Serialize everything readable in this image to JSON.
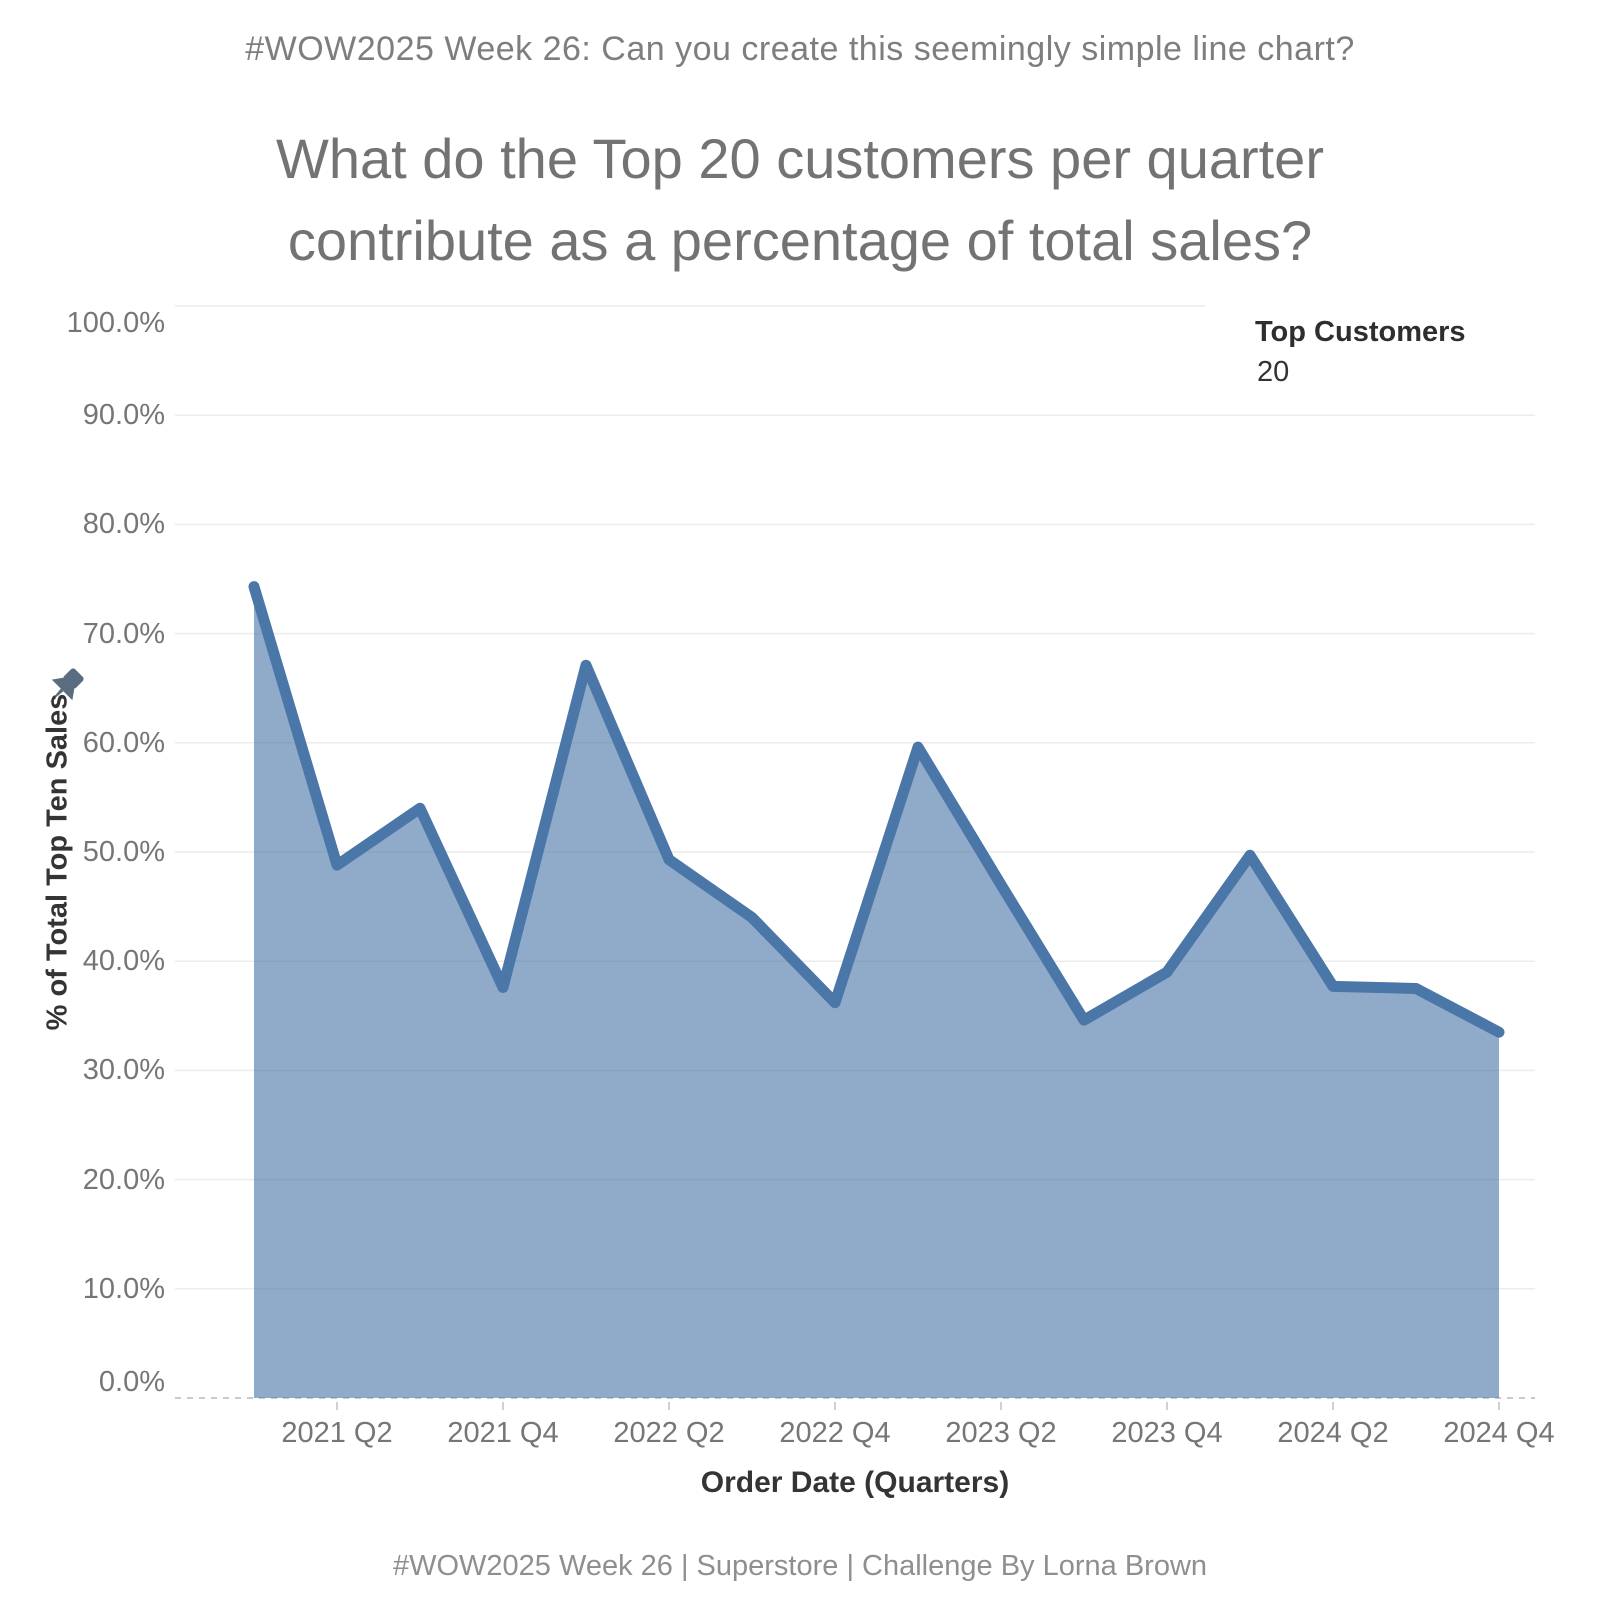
{
  "header": "#WOW2025 Week 26: Can you create this seemingly simple line chart?",
  "title": {
    "line1": "What do the Top 20 customers per quarter",
    "line2": "contribute as a percentage of total sales?"
  },
  "footer": "#WOW2025 Week 26 | Superstore | Challenge By Lorna Brown",
  "chart_data": {
    "type": "area",
    "title": "What do the Top 20 customers per quarter contribute as a percentage of total sales?",
    "xlabel": "Order Date (Quarters)",
    "ylabel": "% of Total Top Ten Sales",
    "ylim": [
      0,
      100
    ],
    "grid": "horizontal-only, zero line dashed",
    "legend_position": "top-right",
    "legend": {
      "title": "Top Customers",
      "value": "20"
    },
    "x": [
      "2021 Q1",
      "2021 Q2",
      "2021 Q3",
      "2021 Q4",
      "2022 Q1",
      "2022 Q2",
      "2022 Q3",
      "2022 Q4",
      "2023 Q1",
      "2023 Q2",
      "2023 Q3",
      "2023 Q4",
      "2024 Q1",
      "2024 Q2",
      "2024 Q3",
      "2024 Q4"
    ],
    "values": [
      74.3,
      48.8,
      54.0,
      37.6,
      67.1,
      49.3,
      44.0,
      36.2,
      59.6,
      47.0,
      34.6,
      39.0,
      49.7,
      37.7,
      37.5,
      33.5
    ],
    "series_name": "% of Total Top Ten Sales",
    "x_ticks": [
      {
        "index": 1,
        "label": "2021 Q2"
      },
      {
        "index": 3,
        "label": "2021 Q4"
      },
      {
        "index": 5,
        "label": "2022 Q2"
      },
      {
        "index": 7,
        "label": "2022 Q4"
      },
      {
        "index": 9,
        "label": "2023 Q2"
      },
      {
        "index": 11,
        "label": "2023 Q4"
      },
      {
        "index": 13,
        "label": "2024 Q2"
      },
      {
        "index": 15,
        "label": "2024 Q4"
      }
    ],
    "y_ticks": [
      {
        "value": 0,
        "label": "0.0%"
      },
      {
        "value": 10,
        "label": "10.0%"
      },
      {
        "value": 20,
        "label": "20.0%"
      },
      {
        "value": 30,
        "label": "30.0%"
      },
      {
        "value": 40,
        "label": "40.0%"
      },
      {
        "value": 50,
        "label": "50.0%"
      },
      {
        "value": 60,
        "label": "60.0%"
      },
      {
        "value": 70,
        "label": "70.0%"
      },
      {
        "value": 80,
        "label": "80.0%"
      },
      {
        "value": 90,
        "label": "90.0%"
      },
      {
        "value": 100,
        "label": "100.0%"
      }
    ],
    "colors": {
      "line": "#4a76a8",
      "area_fill": "#4a76a8",
      "area_opacity": 0.61,
      "gridline": "#ececec",
      "zero_line": "#c9c9c9",
      "tick_mark": "#c0c0c0",
      "pin_icon": "#5a6c80"
    },
    "icons": [
      "pin-icon"
    ]
  }
}
